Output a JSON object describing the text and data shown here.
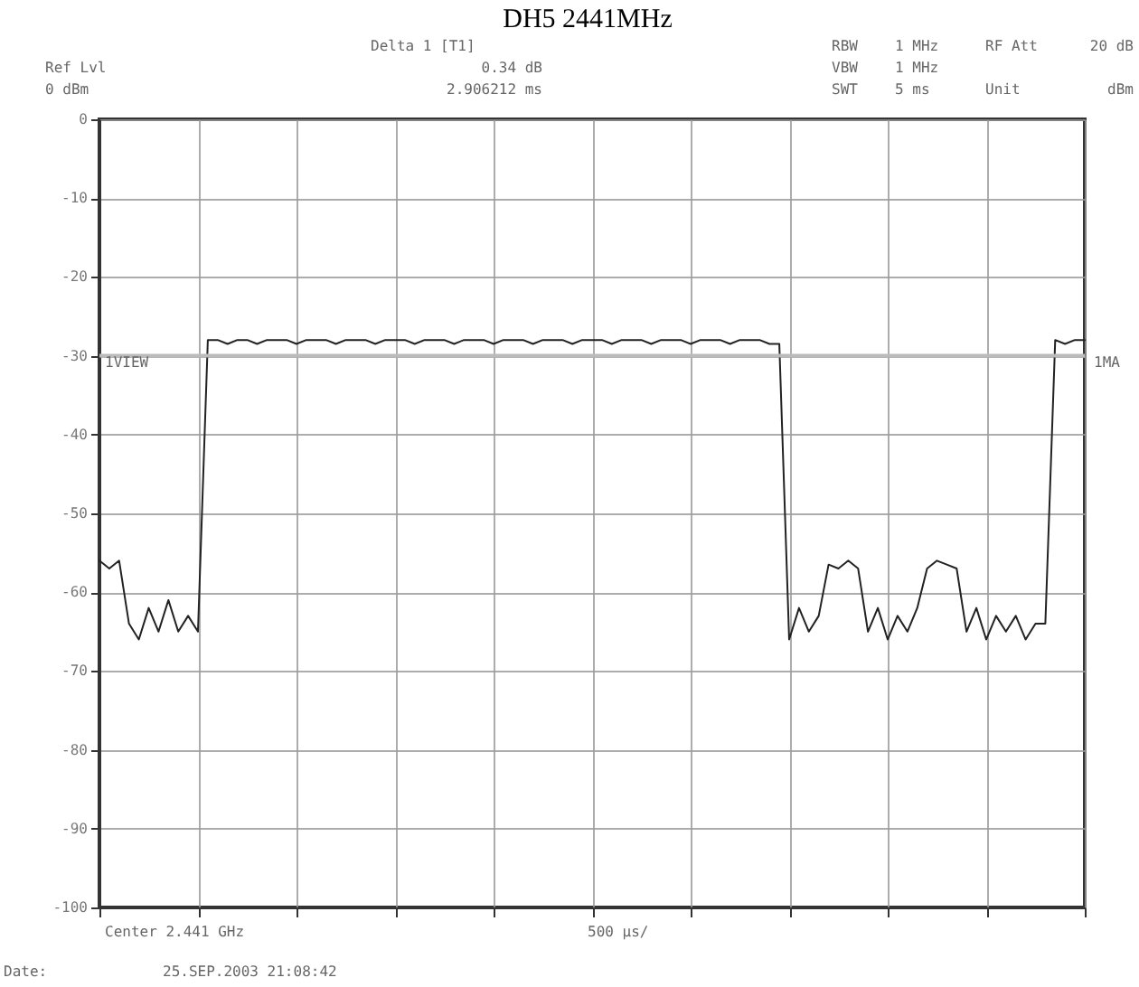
{
  "chart_data": {
    "type": "line",
    "title": "DH5 2441MHz",
    "annotations": [
      "Delta 1 [T1]",
      "0.34 dB",
      "2.906212 ms",
      "Ref Lvl",
      "0 dBm",
      "RBW",
      "1 MHz",
      "VBW",
      "1 MHz",
      "SWT",
      "5 ms",
      "RF Att",
      "20 dB",
      "Unit",
      "dBm",
      "1VIEW",
      "1MA",
      "Center 2.441 GHz",
      "500 µs/",
      "Date:",
      "25.SEP.2003  21:08:42"
    ],
    "categories": [
      null,
      null,
      null,
      null,
      null,
      null,
      null,
      null,
      null,
      null,
      null,
      null,
      null,
      null,
      null,
      null,
      null,
      null,
      null,
      null,
      null,
      null,
      null,
      null,
      null,
      null,
      null,
      null,
      null,
      null,
      null,
      null,
      null,
      null,
      null,
      null,
      null,
      null,
      null,
      null,
      null,
      null,
      null,
      null,
      null,
      null,
      null,
      null,
      null,
      null,
      null,
      null,
      null,
      null,
      null,
      null,
      null,
      null,
      null,
      null,
      null,
      null,
      null,
      null,
      null,
      null,
      null,
      null,
      null,
      null,
      null,
      null,
      null,
      null,
      null,
      null,
      null,
      null,
      null,
      null,
      null,
      null,
      null,
      null,
      null,
      null,
      null,
      null,
      null,
      null,
      null,
      null,
      null,
      null,
      null,
      null,
      null,
      null,
      null,
      null,
      null
    ],
    "series": [
      {
        "color": "#222222",
        "values": [
          -56,
          -57,
          -56,
          -64,
          -66,
          -62,
          -65,
          -61,
          -65,
          -63,
          -65,
          -28,
          -28,
          -28.5,
          -28,
          -28,
          -28.5,
          -28,
          -28,
          -28,
          -28.5,
          -28,
          -28,
          -28,
          -28.5,
          -28,
          -28,
          -28,
          -28.5,
          -28,
          -28,
          -28,
          -28.5,
          -28,
          -28,
          -28,
          -28.5,
          -28,
          -28,
          -28,
          -28.5,
          -28,
          -28,
          -28,
          -28.5,
          -28,
          -28,
          -28,
          -28.5,
          -28,
          -28,
          -28,
          -28.5,
          -28,
          -28,
          -28,
          -28.5,
          -28,
          -28,
          -28,
          -28.5,
          -28,
          -28,
          -28,
          -28.5,
          -28,
          -28,
          -28,
          -28.5,
          -28.5,
          -66,
          -62,
          -65,
          -63,
          -56.5,
          -57,
          -56,
          -57,
          -65,
          -62,
          -66,
          -63,
          -65,
          -62,
          -57,
          -56,
          -56.5,
          -57,
          -65,
          -62,
          -66,
          -63,
          -65,
          -63,
          -66,
          -64,
          -64,
          -28,
          -28.5,
          -28,
          -28
        ]
      }
    ],
    "ylim": [
      -100,
      0
    ],
    "yticks": [
      0,
      -10,
      -20,
      -30,
      -40,
      -50,
      -60,
      -70,
      -80,
      -90,
      -100
    ],
    "ref_lines": [
      {
        "axis": "y",
        "value": -30,
        "color": "#bbbbbb"
      }
    ],
    "grid": true,
    "tick_labels": "y",
    "marker": "none",
    "line_style": "solid"
  }
}
